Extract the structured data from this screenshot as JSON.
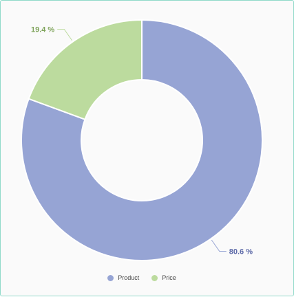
{
  "chart_data": {
    "type": "pie",
    "variant": "donut",
    "categories": [
      "Product",
      "Price"
    ],
    "values": [
      80.6,
      19.4
    ],
    "unit": "%",
    "data_labels": [
      "80.6 %",
      "19.4 %"
    ],
    "colors": [
      "#96a4d4",
      "#bcdb9e"
    ],
    "label_colors": [
      "#5d6aa8",
      "#7ea35a"
    ],
    "legend": {
      "placement": "bottom",
      "items": [
        {
          "label": "Product",
          "color": "#96a4d4"
        },
        {
          "label": "Price",
          "color": "#bcdb9e"
        }
      ]
    },
    "start_angle": "top",
    "direction": "clockwise"
  }
}
